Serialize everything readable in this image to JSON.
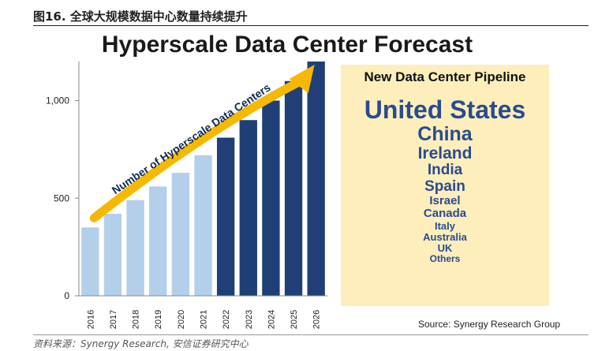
{
  "caption": "图16. 全球大规模数据中心数量持续提升",
  "source_note": "资料来源：Synergy Research, 安信证券研究中心",
  "chart_data": {
    "type": "bar",
    "title": "Hyperscale Data Center Forecast",
    "categories": [
      "2016",
      "2017",
      "2018",
      "2019",
      "2020",
      "2021",
      "2022",
      "2023",
      "2024",
      "2025",
      "2026"
    ],
    "values": [
      350,
      420,
      490,
      560,
      630,
      720,
      810,
      900,
      1000,
      1100,
      1200
    ],
    "ylim": [
      0,
      1200
    ],
    "yticks": [
      0,
      500,
      1000
    ],
    "ytick_labels": [
      "0",
      "500",
      "1,000"
    ],
    "forecast_from_index": 6,
    "colors": {
      "actual": "#b4cfe9",
      "forecast": "#1f3f76",
      "arrow": "#f6b800"
    },
    "arrow_label": "Number of Hyperscale Data Centers",
    "grid": false,
    "source": "Source: Synergy Research Group"
  },
  "pipeline": {
    "title": "New Data Center Pipeline",
    "countries": [
      {
        "name": "United States",
        "size": 32
      },
      {
        "name": "China",
        "size": 25
      },
      {
        "name": "Ireland",
        "size": 21
      },
      {
        "name": "India",
        "size": 19
      },
      {
        "name": "Spain",
        "size": 19
      },
      {
        "name": "Israel",
        "size": 15
      },
      {
        "name": "Canada",
        "size": 15
      },
      {
        "name": "Italy",
        "size": 13
      },
      {
        "name": "Australia",
        "size": 13
      },
      {
        "name": "UK",
        "size": 13
      },
      {
        "name": "Others",
        "size": 12
      }
    ]
  }
}
